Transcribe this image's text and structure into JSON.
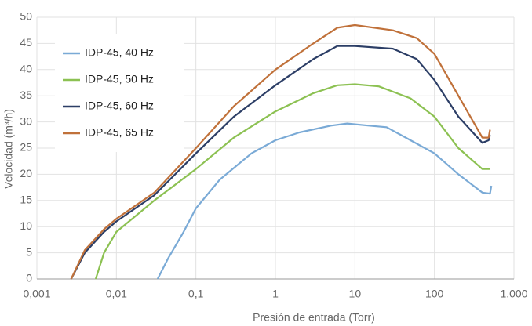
{
  "chart_data": {
    "type": "line",
    "x_label": "Presión de entrada (Torr)",
    "y_label": "Velocidad (m³/h)",
    "xscale": "log",
    "grid": true,
    "legend": "upper left",
    "xlim": [
      0.001,
      1000
    ],
    "xticks": [
      {
        "value": 0.001,
        "label": "0,001"
      },
      {
        "value": 0.01,
        "label": "0,01"
      },
      {
        "value": 0.1,
        "label": "0,1"
      },
      1,
      10,
      100,
      {
        "value": 1000,
        "label": "1.000"
      }
    ],
    "ylim": [
      0,
      50
    ],
    "yticks": [
      0,
      5,
      10,
      15,
      20,
      25,
      30,
      35,
      40,
      45,
      50
    ],
    "series": [
      {
        "name": "IDP-45, 40 Hz",
        "color": "#7aaad6",
        "x": [
          0.033,
          0.045,
          0.07,
          0.1,
          0.2,
          0.5,
          1,
          2,
          5,
          8,
          15,
          25,
          50,
          100,
          200,
          400,
          500,
          520
        ],
        "values": [
          0,
          4,
          9,
          13.5,
          19,
          24,
          26.5,
          28,
          29.3,
          29.7,
          29.3,
          29,
          26.5,
          24,
          20,
          16.5,
          16.3,
          17.8
        ]
      },
      {
        "name": "IDP-45, 50 Hz",
        "color": "#8cc152",
        "x": [
          0.0055,
          0.007,
          0.01,
          0.03,
          0.1,
          0.3,
          1,
          3,
          6,
          10,
          20,
          50,
          100,
          200,
          400,
          500
        ],
        "values": [
          0,
          5,
          9,
          15,
          21,
          27,
          32,
          35.5,
          37,
          37.2,
          36.8,
          34.5,
          31,
          25,
          21,
          21
        ]
      },
      {
        "name": "IDP-45, 60 Hz",
        "color": "#2c3e66",
        "x": [
          0.0027,
          0.004,
          0.007,
          0.01,
          0.03,
          0.1,
          0.3,
          1,
          3,
          6,
          10,
          30,
          60,
          100,
          200,
          400,
          480,
          500
        ],
        "values": [
          0,
          5,
          9,
          11,
          16,
          24,
          31,
          37,
          42,
          44.5,
          44.5,
          44,
          42,
          38,
          31,
          26,
          26.5,
          27.5
        ]
      },
      {
        "name": "IDP-45, 65 Hz",
        "color": "#c0713a",
        "x": [
          0.0027,
          0.004,
          0.007,
          0.01,
          0.03,
          0.1,
          0.3,
          1,
          3,
          6,
          10,
          30,
          60,
          100,
          200,
          400,
          480,
          500
        ],
        "values": [
          0,
          5.5,
          9.5,
          11.5,
          16.5,
          25,
          33,
          40,
          45,
          48,
          48.5,
          47.5,
          46,
          43,
          35,
          27,
          27,
          28.5
        ]
      }
    ]
  }
}
